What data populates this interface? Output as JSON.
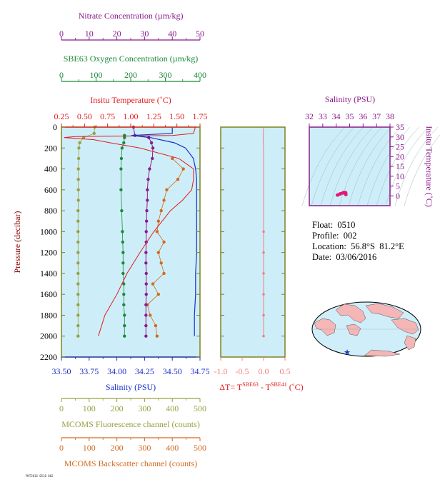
{
  "info": {
    "float_label": "Float:",
    "float": "0510",
    "profile_label": "Profile:",
    "profile": "002",
    "location_label": "Location:",
    "location": "56.8°S  81.2°E",
    "date_label": "Date:",
    "date": "03/06/2016"
  },
  "footnote": "PNT2016 0510 002",
  "colors": {
    "nitrate": "#8b1a8b",
    "oxygen": "#1a8a3a",
    "temperature": "#e31a1a",
    "salinity": "#1a2fc8",
    "fluorescence": "#9aa040",
    "backscatter": "#d2691e",
    "delta_t": "#f08080",
    "panel_bg": "#cdeef8",
    "frame": "#808020",
    "land": "#f4b6b6",
    "ocean": "#cfeefa"
  },
  "chart_data": [
    {
      "type": "line",
      "panel": "profile",
      "y_axis": {
        "label": "Pressure (decibar)",
        "range": [
          0,
          2200
        ],
        "reversed": true,
        "ticks": [
          "0",
          "200",
          "400",
          "600",
          "800",
          "1000",
          "1200",
          "1400",
          "1600",
          "1800",
          "2000",
          "2200"
        ]
      },
      "axes": {
        "nitrate": {
          "label": "Nitrate Concentration (µm/kg)",
          "range": [
            0,
            50
          ],
          "ticks": [
            "0",
            "10",
            "20",
            "30",
            "40",
            "50"
          ]
        },
        "oxygen": {
          "label": "SBE63 Oxygen Concentration (µm/kg)",
          "range": [
            0,
            400
          ],
          "ticks": [
            "0",
            "100",
            "200",
            "300",
            "400"
          ]
        },
        "temperature": {
          "label": "Insitu Temperature (˚C)",
          "range": [
            0.25,
            1.75
          ],
          "ticks": [
            "0.25",
            "0.50",
            "0.75",
            "1.00",
            "1.25",
            "1.50",
            "1.75"
          ]
        },
        "salinity": {
          "label": "Salinity (PSU)",
          "range": [
            33.5,
            34.75
          ],
          "ticks": [
            "33.50",
            "33.75",
            "34.00",
            "34.25",
            "34.50",
            "34.75"
          ]
        },
        "fluorescence": {
          "label": "MCOMS Fluorescence channel (counts)",
          "range": [
            0,
            500
          ],
          "ticks": [
            "0",
            "100",
            "200",
            "300",
            "400",
            "500"
          ]
        },
        "backscatter": {
          "label": "MCOMS Backscatter channel (counts)",
          "range": [
            0,
            500
          ],
          "ticks": [
            "0",
            "100",
            "200",
            "300",
            "400",
            "500"
          ]
        }
      },
      "series": {
        "temperature": {
          "pressure": [
            0,
            60,
            80,
            90,
            100,
            120,
            150,
            200,
            300,
            400,
            500,
            600,
            700,
            800,
            1000,
            1200,
            1400,
            1600,
            1800,
            2000
          ],
          "values": [
            1.7,
            1.68,
            1.45,
            0.4,
            0.28,
            0.6,
            0.78,
            1.1,
            1.52,
            1.68,
            1.68,
            1.66,
            1.56,
            1.43,
            1.25,
            1.1,
            0.96,
            0.85,
            0.72,
            0.65
          ]
        },
        "salinity": {
          "pressure": [
            0,
            60,
            80,
            100,
            150,
            200,
            300,
            400,
            500,
            600,
            800,
            1000,
            1200,
            1400,
            1600,
            1800,
            2000
          ],
          "values": [
            34.5,
            34.5,
            34.13,
            34.3,
            34.52,
            34.62,
            34.69,
            34.71,
            34.72,
            34.72,
            34.72,
            34.72,
            34.72,
            34.71,
            34.71,
            34.7,
            34.7
          ]
        },
        "nitrate": {
          "pressure": [
            0,
            80,
            100,
            150,
            200,
            300,
            400,
            500,
            600,
            700,
            800,
            900,
            1000,
            1100,
            1200,
            1300,
            1400,
            1500,
            1600,
            1700,
            1800,
            1900,
            2000
          ],
          "values": [
            26.0,
            26.5,
            31.5,
            32.5,
            33.0,
            32.8,
            31.8,
            31.3,
            31.0,
            31.0,
            30.8,
            30.7,
            30.6,
            30.6,
            30.5,
            30.5,
            30.6,
            30.6,
            30.6,
            30.5,
            30.5,
            30.5,
            30.5
          ]
        },
        "oxygen": {
          "pressure": [
            80,
            100,
            150,
            200,
            300,
            400,
            600,
            800,
            1000,
            1100,
            1200,
            1300,
            1400,
            1500,
            1600,
            1700,
            1800,
            1900,
            2000
          ],
          "values": [
            182,
            182,
            180,
            175,
            173,
            172,
            172,
            174,
            176,
            177,
            178,
            178,
            178,
            180,
            180,
            180,
            182,
            182,
            182
          ]
        },
        "fluorescence": {
          "pressure": [
            0,
            60,
            100,
            150,
            200,
            300,
            400,
            500,
            600,
            700,
            800,
            900,
            1000,
            1100,
            1200,
            1300,
            1400,
            1500,
            1600,
            1700,
            1800,
            1900,
            2000
          ],
          "values": [
            120,
            118,
            80,
            66,
            63,
            62,
            61,
            61,
            61,
            61,
            60,
            60,
            60,
            60,
            60,
            60,
            60,
            60,
            60,
            60,
            60,
            60,
            60
          ]
        },
        "backscatter": {
          "pressure": [
            300,
            400,
            500,
            600,
            700,
            800,
            900,
            1000,
            1100,
            1200,
            1300,
            1400,
            1500,
            1600,
            1700,
            1800,
            1900,
            2000
          ],
          "values": [
            400,
            440,
            420,
            380,
            370,
            360,
            350,
            345,
            370,
            350,
            360,
            370,
            330,
            350,
            310,
            320,
            340,
            345
          ]
        }
      }
    },
    {
      "type": "line",
      "panel": "delta-t",
      "x_axis": {
        "label_prefix": "ΔT= T",
        "sup1": "SBE63",
        "label_mid": " - T",
        "sup2": "SBE41",
        "label_suffix": " (˚C)",
        "range": [
          -1.0,
          0.5
        ],
        "ticks": [
          "-1.0",
          "-0.5",
          "0.0",
          "0.5"
        ]
      },
      "y_range": [
        0,
        2200
      ],
      "pressure": [
        0,
        100,
        200,
        400,
        600,
        800,
        1000,
        1200,
        1400,
        1600,
        1800,
        2000
      ],
      "values": [
        0.0,
        -0.01,
        0.0,
        0.0,
        0.0,
        0.0,
        0.0,
        0.0,
        0.0,
        0.0,
        0.0,
        0.0
      ]
    },
    {
      "type": "scatter",
      "panel": "ts-diagram",
      "x_axis": {
        "label": "Salinity (PSU)",
        "range": [
          32,
          38
        ],
        "ticks": [
          "32",
          "33",
          "34",
          "35",
          "36",
          "37",
          "38"
        ]
      },
      "y_axis": {
        "label": "Insitu Temperature (˚C)",
        "range": [
          -5,
          35
        ],
        "ticks": [
          "0",
          "5",
          "10",
          "15",
          "20",
          "25",
          "30",
          "35"
        ]
      },
      "points": {
        "salinity": [
          34.1,
          34.3,
          34.5,
          34.6,
          34.7,
          34.72
        ],
        "temperature": [
          0.4,
          1.0,
          1.5,
          1.7,
          1.6,
          0.7
        ]
      }
    }
  ]
}
